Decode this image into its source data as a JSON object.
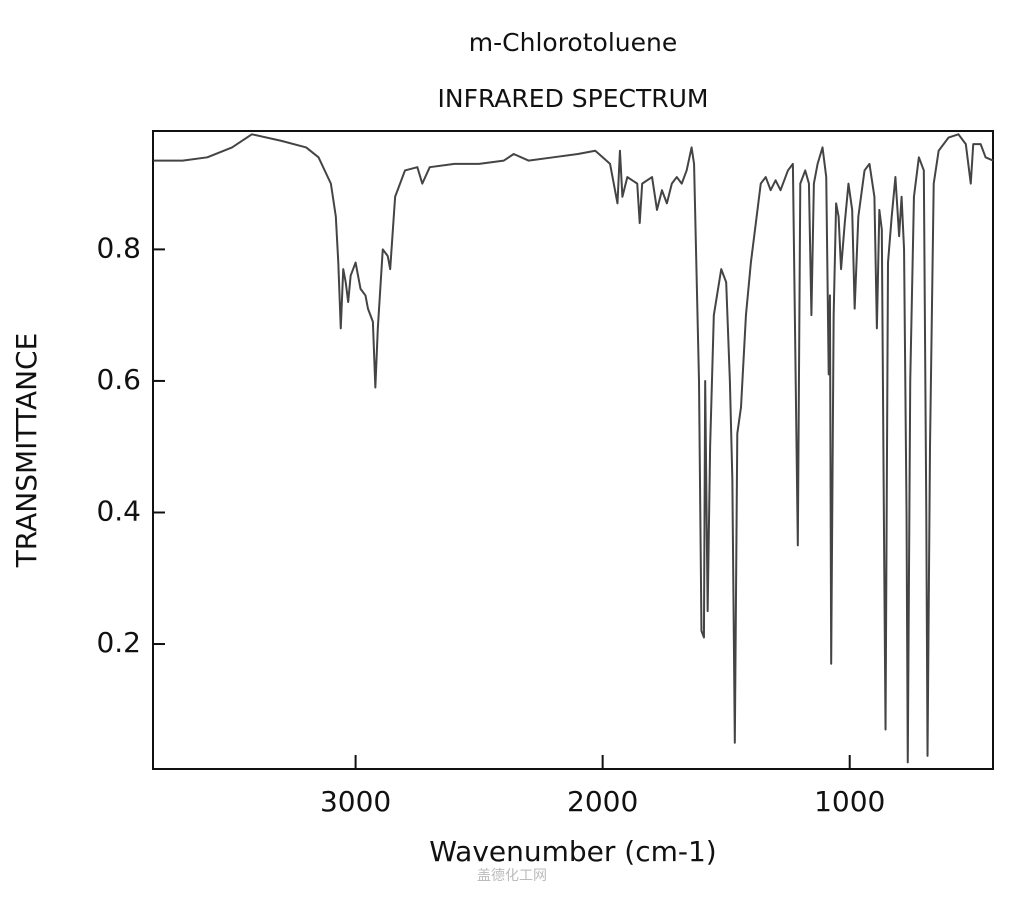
{
  "chart_data": {
    "type": "line",
    "title": "m-Chlorotoluene",
    "subtitle": "INFRARED SPECTRUM",
    "x_label": "Wavenumber (cm-1)",
    "y_label": "TRANSMITTANCE",
    "watermark": "盖德化工网",
    "xlim": [
      3820,
      420
    ],
    "ylim": [
      0.01,
      0.98
    ],
    "xticks": [
      3000,
      2000,
      1000
    ],
    "yticks": [
      0.2,
      0.4,
      0.6,
      0.8
    ],
    "color": "#444444",
    "x": [
      3818,
      3700,
      3600,
      3500,
      3420,
      3300,
      3200,
      3150,
      3100,
      3080,
      3070,
      3060,
      3050,
      3040,
      3030,
      3020,
      3000,
      2980,
      2960,
      2950,
      2930,
      2920,
      2910,
      2890,
      2870,
      2860,
      2840,
      2800,
      2750,
      2730,
      2700,
      2600,
      2500,
      2400,
      2360,
      2300,
      2200,
      2100,
      2030,
      2000,
      1970,
      1940,
      1930,
      1920,
      1900,
      1860,
      1850,
      1840,
      1800,
      1780,
      1760,
      1740,
      1720,
      1700,
      1680,
      1660,
      1640,
      1630,
      1610,
      1600,
      1590,
      1585,
      1575,
      1565,
      1550,
      1520,
      1500,
      1485,
      1475,
      1465,
      1455,
      1440,
      1420,
      1400,
      1380,
      1360,
      1340,
      1320,
      1300,
      1280,
      1250,
      1230,
      1210,
      1200,
      1180,
      1165,
      1155,
      1145,
      1130,
      1110,
      1095,
      1085,
      1080,
      1075,
      1065,
      1055,
      1045,
      1035,
      1020,
      1005,
      990,
      980,
      965,
      940,
      920,
      900,
      890,
      880,
      870,
      860,
      855,
      845,
      830,
      815,
      800,
      790,
      780,
      770,
      765,
      755,
      740,
      720,
      700,
      690,
      685,
      675,
      660,
      640,
      600,
      560,
      530,
      510,
      500,
      470,
      450,
      420
    ],
    "values": [
      0.935,
      0.935,
      0.94,
      0.955,
      0.975,
      0.965,
      0.955,
      0.94,
      0.9,
      0.85,
      0.78,
      0.68,
      0.77,
      0.75,
      0.72,
      0.76,
      0.78,
      0.74,
      0.73,
      0.71,
      0.69,
      0.59,
      0.68,
      0.8,
      0.79,
      0.77,
      0.88,
      0.92,
      0.925,
      0.9,
      0.925,
      0.93,
      0.93,
      0.935,
      0.945,
      0.935,
      0.94,
      0.945,
      0.95,
      0.94,
      0.93,
      0.87,
      0.95,
      0.88,
      0.91,
      0.9,
      0.84,
      0.9,
      0.91,
      0.86,
      0.89,
      0.87,
      0.9,
      0.91,
      0.9,
      0.92,
      0.955,
      0.93,
      0.6,
      0.22,
      0.21,
      0.6,
      0.25,
      0.5,
      0.7,
      0.77,
      0.75,
      0.6,
      0.45,
      0.05,
      0.52,
      0.56,
      0.7,
      0.78,
      0.84,
      0.9,
      0.91,
      0.89,
      0.905,
      0.89,
      0.92,
      0.93,
      0.35,
      0.9,
      0.92,
      0.9,
      0.7,
      0.9,
      0.93,
      0.955,
      0.91,
      0.61,
      0.73,
      0.17,
      0.7,
      0.87,
      0.85,
      0.77,
      0.84,
      0.9,
      0.86,
      0.71,
      0.85,
      0.92,
      0.93,
      0.88,
      0.68,
      0.86,
      0.83,
      0.31,
      0.07,
      0.78,
      0.85,
      0.91,
      0.82,
      0.88,
      0.8,
      0.4,
      0.02,
      0.6,
      0.88,
      0.94,
      0.92,
      0.4,
      0.03,
      0.5,
      0.9,
      0.95,
      0.97,
      0.975,
      0.96,
      0.9,
      0.96,
      0.96,
      0.94,
      0.935
    ]
  }
}
